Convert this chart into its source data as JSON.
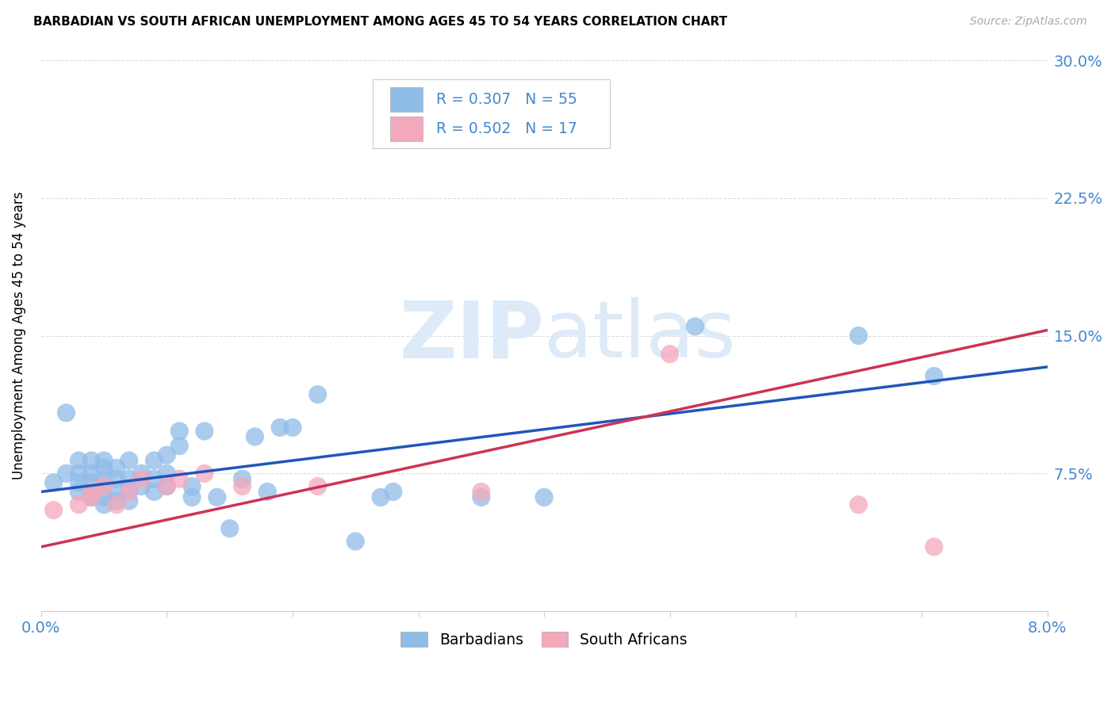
{
  "title": "BARBADIAN VS SOUTH AFRICAN UNEMPLOYMENT AMONG AGES 45 TO 54 YEARS CORRELATION CHART",
  "source": "Source: ZipAtlas.com",
  "ylabel": "Unemployment Among Ages 45 to 54 years",
  "xlim": [
    0.0,
    0.08
  ],
  "ylim": [
    0.0,
    0.3
  ],
  "xtick_positions": [
    0.0,
    0.01,
    0.02,
    0.03,
    0.04,
    0.05,
    0.06,
    0.07,
    0.08
  ],
  "xticklabels": [
    "0.0%",
    "",
    "",
    "",
    "",
    "",
    "",
    "",
    "8.0%"
  ],
  "ytick_positions": [
    0.0,
    0.075,
    0.15,
    0.225,
    0.3
  ],
  "yticklabels_right": [
    "",
    "7.5%",
    "15.0%",
    "22.5%",
    "30.0%"
  ],
  "blue_color": "#90bce8",
  "blue_edge_color": "#90bce8",
  "pink_color": "#f4a8bc",
  "pink_edge_color": "#f4a8bc",
  "blue_line_color": "#2255bb",
  "pink_line_color": "#cc3355",
  "tick_label_color": "#4488cc",
  "grid_color": "#dddddd",
  "background_color": "#ffffff",
  "watermark_color": "#ddeaf8",
  "blue_line_y0": 0.065,
  "blue_line_y1": 0.133,
  "pink_line_y0": 0.035,
  "pink_line_y1": 0.153,
  "blue_scatter_x": [
    0.001,
    0.002,
    0.002,
    0.003,
    0.003,
    0.003,
    0.003,
    0.004,
    0.004,
    0.004,
    0.004,
    0.004,
    0.005,
    0.005,
    0.005,
    0.005,
    0.005,
    0.005,
    0.006,
    0.006,
    0.006,
    0.006,
    0.007,
    0.007,
    0.007,
    0.007,
    0.008,
    0.008,
    0.009,
    0.009,
    0.009,
    0.01,
    0.01,
    0.01,
    0.011,
    0.011,
    0.012,
    0.012,
    0.013,
    0.014,
    0.015,
    0.016,
    0.017,
    0.018,
    0.019,
    0.02,
    0.022,
    0.025,
    0.027,
    0.028,
    0.035,
    0.04,
    0.052,
    0.065,
    0.071
  ],
  "blue_scatter_y": [
    0.07,
    0.108,
    0.075,
    0.065,
    0.07,
    0.075,
    0.082,
    0.062,
    0.065,
    0.07,
    0.075,
    0.082,
    0.058,
    0.062,
    0.068,
    0.072,
    0.078,
    0.082,
    0.06,
    0.065,
    0.072,
    0.078,
    0.06,
    0.066,
    0.072,
    0.082,
    0.068,
    0.075,
    0.065,
    0.072,
    0.082,
    0.068,
    0.075,
    0.085,
    0.09,
    0.098,
    0.062,
    0.068,
    0.098,
    0.062,
    0.045,
    0.072,
    0.095,
    0.065,
    0.1,
    0.1,
    0.118,
    0.038,
    0.062,
    0.065,
    0.062,
    0.062,
    0.155,
    0.15,
    0.128
  ],
  "pink_scatter_x": [
    0.001,
    0.003,
    0.004,
    0.004,
    0.005,
    0.006,
    0.007,
    0.008,
    0.01,
    0.011,
    0.013,
    0.016,
    0.022,
    0.035,
    0.05,
    0.065,
    0.071
  ],
  "pink_scatter_y": [
    0.055,
    0.058,
    0.062,
    0.065,
    0.068,
    0.058,
    0.065,
    0.072,
    0.068,
    0.072,
    0.075,
    0.068,
    0.068,
    0.065,
    0.14,
    0.058,
    0.035
  ]
}
